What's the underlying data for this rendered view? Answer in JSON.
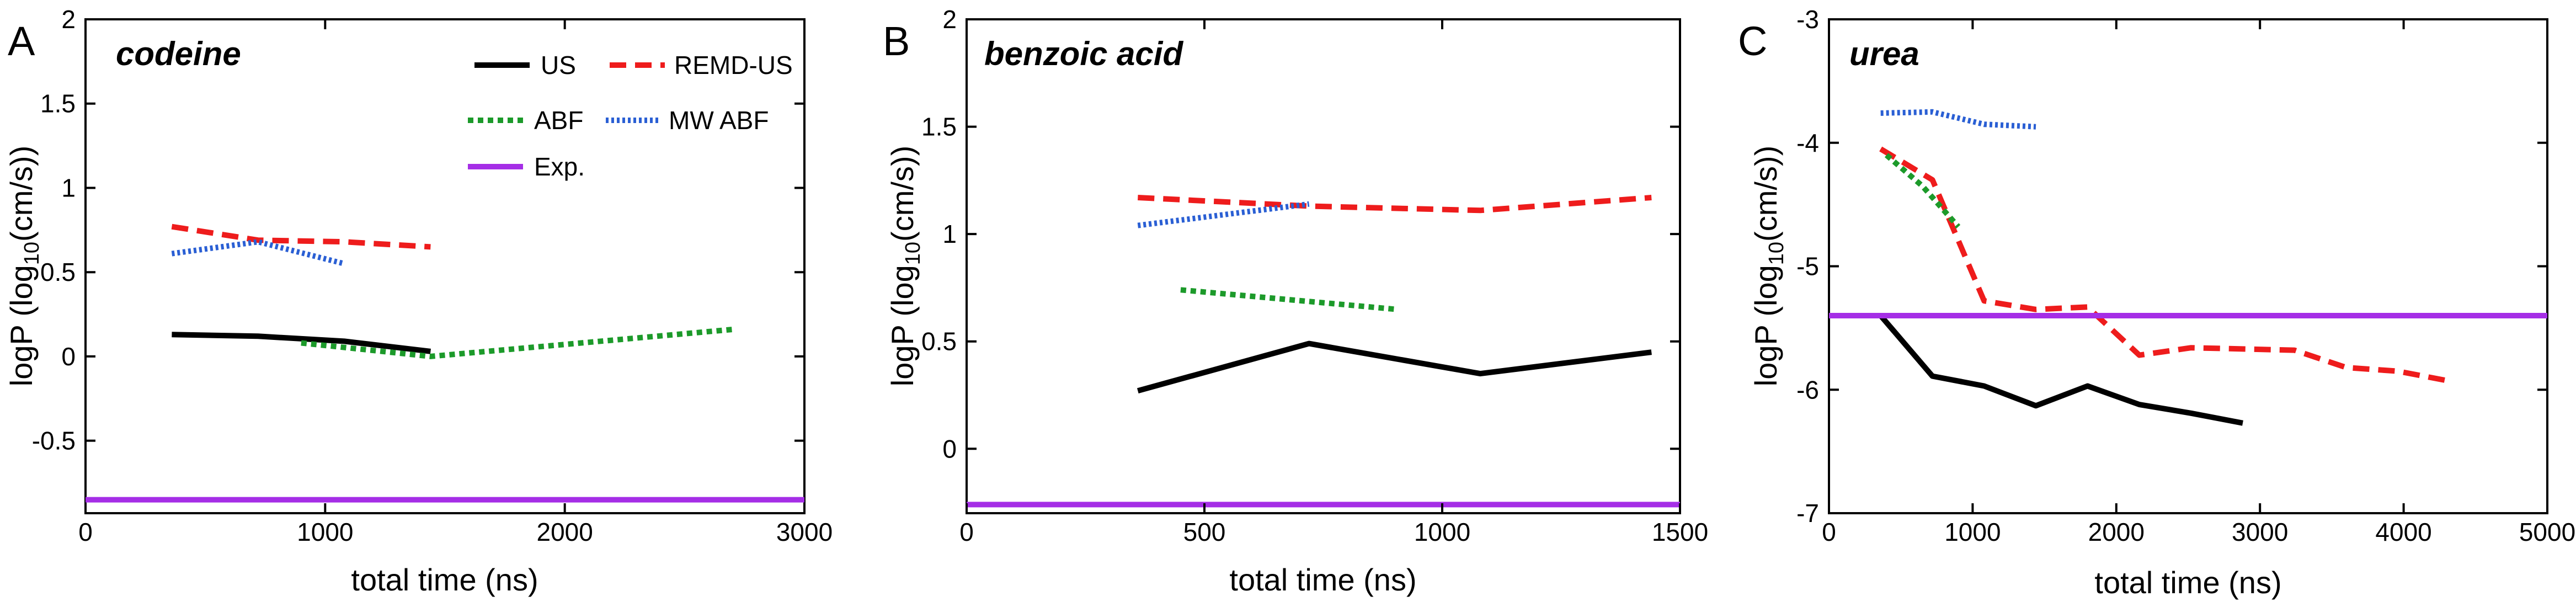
{
  "colors": {
    "US": "#000000",
    "REMD-US": "#ee1c1c",
    "ABF": "#1c9a2a",
    "MW ABF": "#2a5fd4",
    "Exp.": "#a52ee6"
  },
  "legend": {
    "items": [
      {
        "label": "US",
        "series": "US"
      },
      {
        "label": "REMD-US",
        "series": "REMD-US"
      },
      {
        "label": "ABF",
        "series": "ABF"
      },
      {
        "label": "MW ABF",
        "series": "MW ABF"
      },
      {
        "label": "Exp.",
        "series": "Exp."
      }
    ]
  },
  "chart_data": [
    {
      "type": "line",
      "panel": "A",
      "title": "codeine",
      "xlabel": "total time (ns)",
      "ylabel": "logP (log10(cm/s))",
      "xlim": [
        0,
        3000
      ],
      "ylim": [
        -0.93,
        2
      ],
      "xticks": [
        0,
        1000,
        2000,
        3000
      ],
      "yticks": [
        -0.5,
        0,
        0.5,
        1,
        1.5,
        2
      ],
      "xtick_labels": [
        "0",
        "1000",
        "2000",
        "3000"
      ],
      "ytick_labels": [
        "-0.5",
        "0",
        "0.5",
        "1",
        "1.5",
        "2"
      ],
      "grid": false,
      "series": [
        {
          "name": "US",
          "style": "solid",
          "x": [
            360,
            720,
            1080,
            1440
          ],
          "y": [
            0.13,
            0.12,
            0.09,
            0.03
          ]
        },
        {
          "name": "REMD-US",
          "style": "dashed",
          "x": [
            360,
            720,
            1080,
            1440
          ],
          "y": [
            0.77,
            0.69,
            0.68,
            0.65
          ]
        },
        {
          "name": "ABF",
          "style": "dotted",
          "x": [
            900,
            1440,
            2700
          ],
          "y": [
            0.08,
            0.0,
            0.16
          ]
        },
        {
          "name": "MW ABF",
          "style": "dotted",
          "x": [
            360,
            720,
            1080
          ],
          "y": [
            0.61,
            0.68,
            0.55
          ]
        },
        {
          "name": "Exp.",
          "style": "solid",
          "x": [
            0,
            3000
          ],
          "y": [
            -0.85,
            -0.85
          ]
        }
      ]
    },
    {
      "type": "line",
      "panel": "B",
      "title": "benzoic acid",
      "xlabel": "total time (ns)",
      "ylabel": "logP (log10(cm/s))",
      "xlim": [
        0,
        1500
      ],
      "ylim": [
        -0.3,
        2
      ],
      "xticks": [
        0,
        500,
        1000,
        1500
      ],
      "yticks": [
        0,
        0.5,
        1,
        1.5,
        2
      ],
      "xtick_labels": [
        "0",
        "500",
        "1000",
        "1500"
      ],
      "ytick_labels": [
        "0",
        "0.5",
        "1",
        "1.5",
        "2"
      ],
      "grid": false,
      "series": [
        {
          "name": "US",
          "style": "solid",
          "x": [
            360,
            720,
            1080,
            1440
          ],
          "y": [
            0.27,
            0.49,
            0.35,
            0.45
          ]
        },
        {
          "name": "REMD-US",
          "style": "dashed",
          "x": [
            360,
            720,
            1080,
            1440
          ],
          "y": [
            1.17,
            1.13,
            1.11,
            1.17
          ]
        },
        {
          "name": "ABF",
          "style": "dotted",
          "x": [
            450,
            900
          ],
          "y": [
            0.74,
            0.65
          ]
        },
        {
          "name": "MW ABF",
          "style": "dotted",
          "x": [
            360,
            720
          ],
          "y": [
            1.04,
            1.14
          ]
        },
        {
          "name": "Exp.",
          "style": "solid",
          "x": [
            0,
            1500
          ],
          "y": [
            -0.26,
            -0.26
          ]
        }
      ]
    },
    {
      "type": "line",
      "panel": "C",
      "title": "urea",
      "xlabel": "total time (ns)",
      "ylabel": "logP (log10(cm/s))",
      "xlim": [
        0,
        5000
      ],
      "ylim": [
        -7,
        -3
      ],
      "xticks": [
        0,
        1000,
        2000,
        3000,
        4000,
        5000
      ],
      "yticks": [
        -7,
        -6,
        -5,
        -4,
        -3
      ],
      "xtick_labels": [
        "0",
        "1000",
        "2000",
        "3000",
        "4000",
        "5000"
      ],
      "ytick_labels": [
        "-7",
        "-6",
        "-5",
        "-4",
        "-3"
      ],
      "grid": false,
      "series": [
        {
          "name": "US",
          "style": "solid",
          "x": [
            360,
            720,
            1080,
            1440,
            1800,
            2160,
            2520,
            2880
          ],
          "y": [
            -5.4,
            -5.89,
            -5.97,
            -6.13,
            -5.97,
            -6.12,
            -6.19,
            -6.27
          ]
        },
        {
          "name": "REMD-US",
          "style": "dashed",
          "x": [
            360,
            720,
            1080,
            1440,
            1800,
            2160,
            2520,
            2880,
            3240,
            3600,
            3960,
            4320
          ],
          "y": [
            -4.05,
            -4.3,
            -5.28,
            -5.35,
            -5.33,
            -5.72,
            -5.66,
            -5.67,
            -5.68,
            -5.82,
            -5.85,
            -5.93
          ]
        },
        {
          "name": "ABF",
          "style": "dotted",
          "x": [
            400,
            650,
            900
          ],
          "y": [
            -4.1,
            -4.35,
            -4.68
          ]
        },
        {
          "name": "MW ABF",
          "style": "dotted",
          "x": [
            360,
            720,
            1080,
            1440
          ],
          "y": [
            -3.76,
            -3.75,
            -3.85,
            -3.87
          ]
        },
        {
          "name": "Exp.",
          "style": "solid",
          "x": [
            0,
            5000
          ],
          "y": [
            -5.4,
            -5.4
          ]
        }
      ]
    }
  ]
}
